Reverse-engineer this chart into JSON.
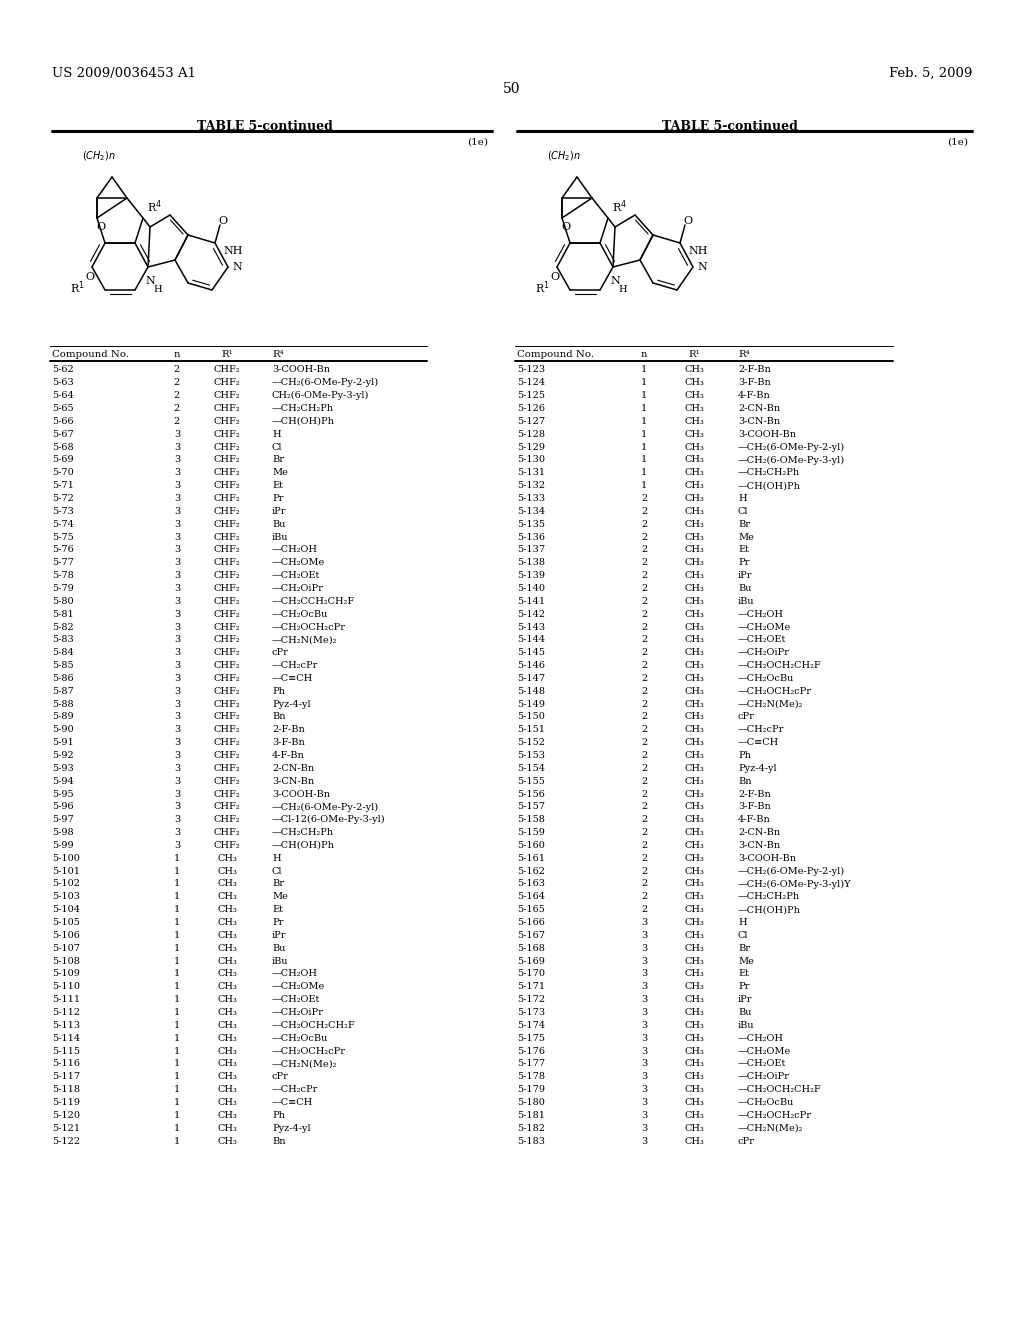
{
  "header_left": "US 2009/0036453 A1",
  "header_right": "Feb. 5, 2009",
  "page_number": "50",
  "table_title": "TABLE 5-continued",
  "compound_label": "(1e)",
  "left_table": {
    "headers": [
      "Compound No.",
      "n",
      "R¹",
      "R⁴"
    ],
    "rows": [
      [
        "5-62",
        "2",
        "CHF₂",
        "3-COOH-Bn"
      ],
      [
        "5-63",
        "2",
        "CHF₂",
        "—CH₂(6-OMe-Py-2-yl)"
      ],
      [
        "5-64",
        "2",
        "CHF₂",
        "CH₂(6-OMe-Py-3-yl)"
      ],
      [
        "5-65",
        "2",
        "CHF₂",
        "—CH₂CH₂Ph"
      ],
      [
        "5-66",
        "2",
        "CHF₂",
        "—CH(OH)Ph"
      ],
      [
        "5-67",
        "3",
        "CHF₂",
        "H"
      ],
      [
        "5-68",
        "3",
        "CHF₂",
        "Cl"
      ],
      [
        "5-69",
        "3",
        "CHF₂",
        "Br"
      ],
      [
        "5-70",
        "3",
        "CHF₂",
        "Me"
      ],
      [
        "5-71",
        "3",
        "CHF₂",
        "Et"
      ],
      [
        "5-72",
        "3",
        "CHF₂",
        "Pr"
      ],
      [
        "5-73",
        "3",
        "CHF₂",
        "iPr"
      ],
      [
        "5-74",
        "3",
        "CHF₂",
        "Bu"
      ],
      [
        "5-75",
        "3",
        "CHF₂",
        "iBu"
      ],
      [
        "5-76",
        "3",
        "CHF₂",
        "—CH₂OH"
      ],
      [
        "5-77",
        "3",
        "CHF₂",
        "—CH₂OMe"
      ],
      [
        "5-78",
        "3",
        "CHF₂",
        "—CH₂OEt"
      ],
      [
        "5-79",
        "3",
        "CHF₂",
        "—CH₂OiPr"
      ],
      [
        "5-80",
        "3",
        "CHF₂",
        "—CH₂CCH₂CH₂F"
      ],
      [
        "5-81",
        "3",
        "CHF₂",
        "—CH₂OcBu"
      ],
      [
        "5-82",
        "3",
        "CHF₂",
        "—CH₂OCH₂cPr"
      ],
      [
        "5-83",
        "3",
        "CHF₂",
        "—CH₂N(Me)₂"
      ],
      [
        "5-84",
        "3",
        "CHF₂",
        "cPr"
      ],
      [
        "5-85",
        "3",
        "CHF₂",
        "—CH₂cPr"
      ],
      [
        "5-86",
        "3",
        "CHF₂",
        "—C≡CH"
      ],
      [
        "5-87",
        "3",
        "CHF₂",
        "Ph"
      ],
      [
        "5-88",
        "3",
        "CHF₂",
        "Pyz-4-yl"
      ],
      [
        "5-89",
        "3",
        "CHF₂",
        "Bn"
      ],
      [
        "5-90",
        "3",
        "CHF₂",
        "2-F-Bn"
      ],
      [
        "5-91",
        "3",
        "CHF₂",
        "3-F-Bn"
      ],
      [
        "5-92",
        "3",
        "CHF₂",
        "4-F-Bn"
      ],
      [
        "5-93",
        "3",
        "CHF₂",
        "2-CN-Bn"
      ],
      [
        "5-94",
        "3",
        "CHF₂",
        "3-CN-Bn"
      ],
      [
        "5-95",
        "3",
        "CHF₂",
        "3-COOH-Bn"
      ],
      [
        "5-96",
        "3",
        "CHF₂",
        "—CH₂(6-OMe-Py-2-yl)"
      ],
      [
        "5-97",
        "3",
        "CHF₂",
        "—Cl-12(6-OMe-Py-3-yl)"
      ],
      [
        "5-98",
        "3",
        "CHF₂",
        "—CH₂CH₂Ph"
      ],
      [
        "5-99",
        "3",
        "CHF₂",
        "—CH(OH)Ph"
      ],
      [
        "5-100",
        "1",
        "CH₃",
        "H"
      ],
      [
        "5-101",
        "1",
        "CH₃",
        "Cl"
      ],
      [
        "5-102",
        "1",
        "CH₃",
        "Br"
      ],
      [
        "5-103",
        "1",
        "CH₃",
        "Me"
      ],
      [
        "5-104",
        "1",
        "CH₃",
        "Et"
      ],
      [
        "5-105",
        "1",
        "CH₃",
        "Pr"
      ],
      [
        "5-106",
        "1",
        "CH₃",
        "iPr"
      ],
      [
        "5-107",
        "1",
        "CH₃",
        "Bu"
      ],
      [
        "5-108",
        "1",
        "CH₃",
        "iBu"
      ],
      [
        "5-109",
        "1",
        "CH₃",
        "—CH₂OH"
      ],
      [
        "5-110",
        "1",
        "CH₃",
        "—CH₂OMe"
      ],
      [
        "5-111",
        "1",
        "CH₃",
        "—CH₂OEt"
      ],
      [
        "5-112",
        "1",
        "CH₃",
        "—CH₂OiPr"
      ],
      [
        "5-113",
        "1",
        "CH₃",
        "—CH₂OCH₂CH₂F"
      ],
      [
        "5-114",
        "1",
        "CH₃",
        "—CH₂OcBu"
      ],
      [
        "5-115",
        "1",
        "CH₃",
        "—CH₂OCH₂cPr"
      ],
      [
        "5-116",
        "1",
        "CH₃",
        "—CH₂N(Me)₂"
      ],
      [
        "5-117",
        "1",
        "CH₃",
        "cPr"
      ],
      [
        "5-118",
        "1",
        "CH₃",
        "—CH₂cPr"
      ],
      [
        "5-119",
        "1",
        "CH₃",
        "—C≡CH"
      ],
      [
        "5-120",
        "1",
        "CH₃",
        "Ph"
      ],
      [
        "5-121",
        "1",
        "CH₃",
        "Pyz-4-yl"
      ],
      [
        "5-122",
        "1",
        "CH₃",
        "Bn"
      ]
    ]
  },
  "right_table": {
    "headers": [
      "Compound No.",
      "n",
      "R¹",
      "R⁴"
    ],
    "rows": [
      [
        "5-123",
        "1",
        "CH₃",
        "2-F-Bn"
      ],
      [
        "5-124",
        "1",
        "CH₃",
        "3-F-Bn"
      ],
      [
        "5-125",
        "1",
        "CH₃",
        "4-F-Bn"
      ],
      [
        "5-126",
        "1",
        "CH₃",
        "2-CN-Bn"
      ],
      [
        "5-127",
        "1",
        "CH₃",
        "3-CN-Bn"
      ],
      [
        "5-128",
        "1",
        "CH₃",
        "3-COOH-Bn"
      ],
      [
        "5-129",
        "1",
        "CH₃",
        "—CH₂(6-OMe-Py-2-yl)"
      ],
      [
        "5-130",
        "1",
        "CH₃",
        "—CH₂(6-OMe-Py-3-yl)"
      ],
      [
        "5-131",
        "1",
        "CH₃",
        "—CH₂CH₂Ph"
      ],
      [
        "5-132",
        "1",
        "CH₃",
        "—CH(OH)Ph"
      ],
      [
        "5-133",
        "2",
        "CH₃",
        "H"
      ],
      [
        "5-134",
        "2",
        "CH₃",
        "Cl"
      ],
      [
        "5-135",
        "2",
        "CH₃",
        "Br"
      ],
      [
        "5-136",
        "2",
        "CH₃",
        "Me"
      ],
      [
        "5-137",
        "2",
        "CH₃",
        "Et"
      ],
      [
        "5-138",
        "2",
        "CH₃",
        "Pr"
      ],
      [
        "5-139",
        "2",
        "CH₃",
        "iPr"
      ],
      [
        "5-140",
        "2",
        "CH₃",
        "Bu"
      ],
      [
        "5-141",
        "2",
        "CH₃",
        "iBu"
      ],
      [
        "5-142",
        "2",
        "CH₃",
        "—CH₂OH"
      ],
      [
        "5-143",
        "2",
        "CH₃",
        "—CH₂OMe"
      ],
      [
        "5-144",
        "2",
        "CH₃",
        "—CH₂OEt"
      ],
      [
        "5-145",
        "2",
        "CH₃",
        "—CH₂OiPr"
      ],
      [
        "5-146",
        "2",
        "CH₃",
        "—CH₂OCH₂CH₂F"
      ],
      [
        "5-147",
        "2",
        "CH₃",
        "—CH₂OcBu"
      ],
      [
        "5-148",
        "2",
        "CH₃",
        "—CH₂OCH₂cPr"
      ],
      [
        "5-149",
        "2",
        "CH₃",
        "—CH₂N(Me)₂"
      ],
      [
        "5-150",
        "2",
        "CH₃",
        "cPr"
      ],
      [
        "5-151",
        "2",
        "CH₃",
        "—CH₂cPr"
      ],
      [
        "5-152",
        "2",
        "CH₃",
        "—C≡CH"
      ],
      [
        "5-153",
        "2",
        "CH₃",
        "Ph"
      ],
      [
        "5-154",
        "2",
        "CH₃",
        "Pyz-4-yl"
      ],
      [
        "5-155",
        "2",
        "CH₃",
        "Bn"
      ],
      [
        "5-156",
        "2",
        "CH₃",
        "2-F-Bn"
      ],
      [
        "5-157",
        "2",
        "CH₃",
        "3-F-Bn"
      ],
      [
        "5-158",
        "2",
        "CH₃",
        "4-F-Bn"
      ],
      [
        "5-159",
        "2",
        "CH₃",
        "2-CN-Bn"
      ],
      [
        "5-160",
        "2",
        "CH₃",
        "3-CN-Bn"
      ],
      [
        "5-161",
        "2",
        "CH₃",
        "3-COOH-Bn"
      ],
      [
        "5-162",
        "2",
        "CH₃",
        "—CH₂(6-OMe-Py-2-yl)"
      ],
      [
        "5-163",
        "2",
        "CH₃",
        "—CH₂(6-OMe-Py-3-yl)Y"
      ],
      [
        "5-164",
        "2",
        "CH₃",
        "—CH₂CH₂Ph"
      ],
      [
        "5-165",
        "2",
        "CH₃",
        "—CH(OH)Ph"
      ],
      [
        "5-166",
        "3",
        "CH₃",
        "H"
      ],
      [
        "5-167",
        "3",
        "CH₃",
        "Cl"
      ],
      [
        "5-168",
        "3",
        "CH₃",
        "Br"
      ],
      [
        "5-169",
        "3",
        "CH₃",
        "Me"
      ],
      [
        "5-170",
        "3",
        "CH₃",
        "Et"
      ],
      [
        "5-171",
        "3",
        "CH₃",
        "Pr"
      ],
      [
        "5-172",
        "3",
        "CH₃",
        "iPr"
      ],
      [
        "5-173",
        "3",
        "CH₃",
        "Bu"
      ],
      [
        "5-174",
        "3",
        "CH₃",
        "iBu"
      ],
      [
        "5-175",
        "3",
        "CH₃",
        "—CH₂OH"
      ],
      [
        "5-176",
        "3",
        "CH₃",
        "—CH₂OMe"
      ],
      [
        "5-177",
        "3",
        "CH₃",
        "—CH₂OEt"
      ],
      [
        "5-178",
        "3",
        "CH₃",
        "—CH₂OiPr"
      ],
      [
        "5-179",
        "3",
        "CH₃",
        "—CH₂OCH₂CH₂F"
      ],
      [
        "5-180",
        "3",
        "CH₃",
        "—CH₂OcBu"
      ],
      [
        "5-181",
        "3",
        "CH₃",
        "—CH₂OCH₂cPr"
      ],
      [
        "5-182",
        "3",
        "CH₃",
        "—CH₂N(Me)₂"
      ],
      [
        "5-183",
        "3",
        "CH₃",
        "cPr"
      ]
    ]
  },
  "bg_color": "#ffffff",
  "text_color": "#000000",
  "font_size": 7.0,
  "title_font_size": 9.0
}
